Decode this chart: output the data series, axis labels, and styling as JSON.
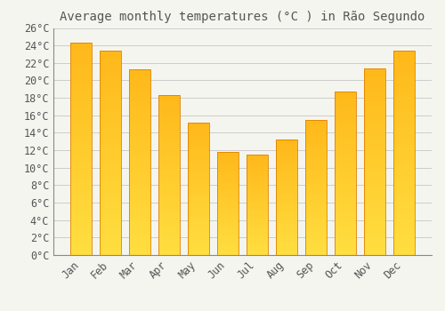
{
  "title": "Average monthly temperatures (°C ) in Rão Segundo",
  "months": [
    "Jan",
    "Feb",
    "Mar",
    "Apr",
    "May",
    "Jun",
    "Jul",
    "Aug",
    "Sep",
    "Oct",
    "Nov",
    "Dec"
  ],
  "values": [
    24.3,
    23.4,
    21.3,
    18.3,
    15.2,
    11.8,
    11.5,
    13.2,
    15.5,
    18.7,
    21.4,
    23.4
  ],
  "bar_color_bottom": "#FFC84A",
  "bar_color_top": "#FFA500",
  "bar_edge_color": "#E08000",
  "background_color": "#F5F5F0",
  "plot_bg_color": "#F5F5F0",
  "grid_color": "#CCCCCC",
  "ylim": [
    0,
    26
  ],
  "ytick_step": 2,
  "title_fontsize": 10,
  "tick_fontsize": 8.5,
  "font_family": "monospace",
  "text_color": "#555555"
}
